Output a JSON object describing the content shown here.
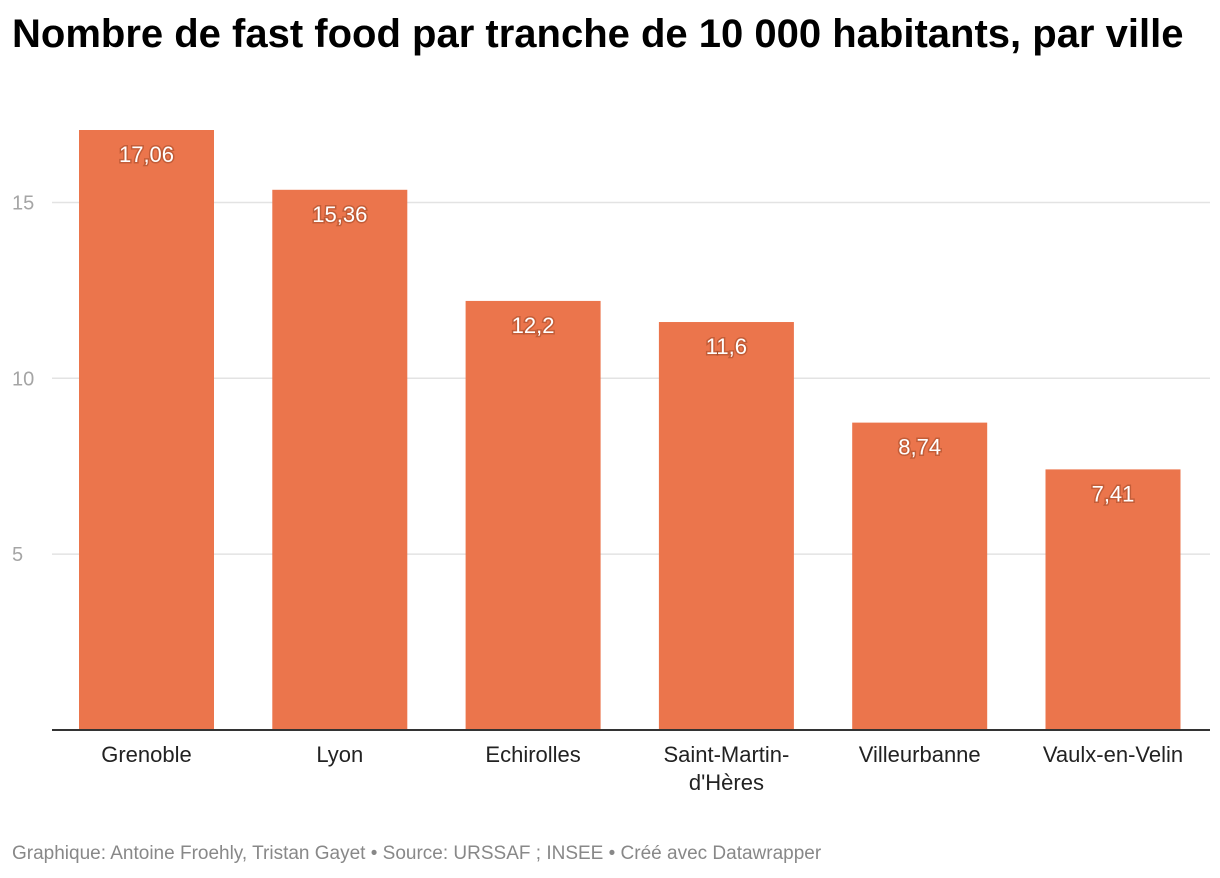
{
  "header": {
    "title": "Nombre de fast food par tranche de 10 000 habitants, par ville"
  },
  "footer": {
    "credit": "Graphique: Antoine Froehly, Tristan Gayet • Source: URSSAF ; INSEE • Créé avec Datawrapper"
  },
  "colors": {
    "bar": "#eb754c",
    "grid": "#e3e3e3",
    "axis": "#333333"
  },
  "chart_data": {
    "type": "bar",
    "title": "Nombre de fast food par tranche de 10 000 habitants, par ville",
    "xlabel": "",
    "ylabel": "",
    "ylim": [
      0,
      17.06
    ],
    "grid": true,
    "yticks": [
      5,
      10,
      15
    ],
    "ytick_labels": [
      "5",
      "10",
      "15"
    ],
    "categories": [
      [
        "Grenoble"
      ],
      [
        "Lyon"
      ],
      [
        "Echirolles"
      ],
      [
        "Saint-Martin-",
        "d'Hères"
      ],
      [
        "Villeurbanne"
      ],
      [
        "Vaulx-en-Velin"
      ]
    ],
    "values": [
      17.06,
      15.36,
      12.2,
      11.6,
      8.74,
      7.41
    ],
    "value_labels": [
      "17,06",
      "15,36",
      "12,2",
      "11,6",
      "8,74",
      "7,41"
    ]
  }
}
